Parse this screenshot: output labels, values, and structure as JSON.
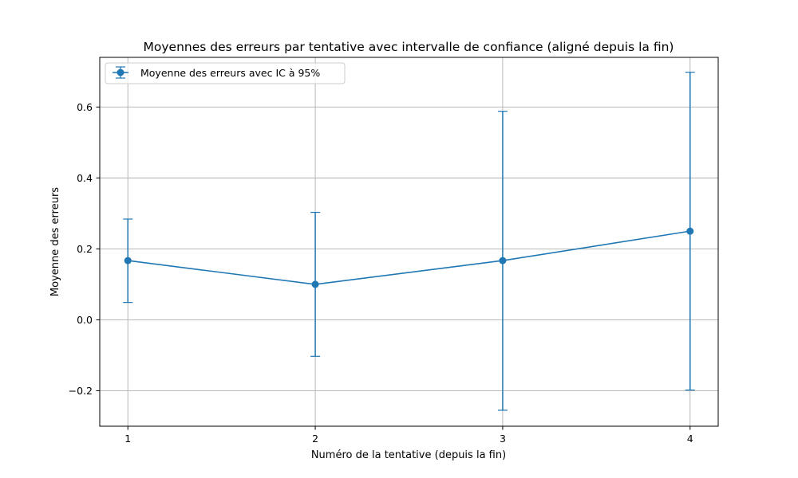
{
  "chart_data": {
    "type": "line",
    "title": "Moyennes des erreurs par tentative avec intervalle de confiance (aligné depuis la fin)",
    "xlabel": "Numéro de la tentative (depuis la fin)",
    "ylabel": "Moyenne des erreurs",
    "x": [
      1,
      2,
      3,
      4
    ],
    "x_ticks": [
      1,
      2,
      3,
      4
    ],
    "x_tick_labels": [
      "1",
      "2",
      "3",
      "4"
    ],
    "y_ticks": [
      -0.2,
      0.0,
      0.2,
      0.4,
      0.6
    ],
    "y_tick_labels": [
      "−0.2",
      "0.0",
      "0.2",
      "0.4",
      "0.6"
    ],
    "xlim": [
      0.85,
      4.15
    ],
    "ylim": [
      -0.3,
      0.74
    ],
    "grid": true,
    "legend_position": "top-left",
    "series": [
      {
        "name": "Moyenne des erreurs avec IC à 95%",
        "color": "#1f77b4",
        "marker": "circle",
        "values": [
          0.167,
          0.1,
          0.167,
          0.25
        ],
        "ci_lower": [
          0.049,
          -0.103,
          -0.255,
          -0.198
        ],
        "ci_upper": [
          0.284,
          0.303,
          0.588,
          0.698
        ]
      }
    ]
  }
}
